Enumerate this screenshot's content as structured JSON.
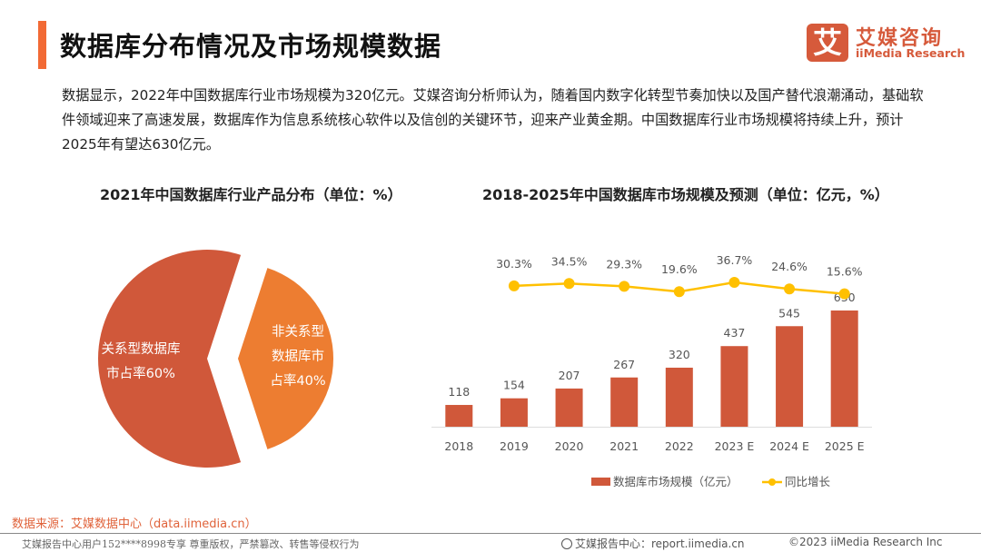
{
  "header": {
    "title": "数据库分布情况及市场规模数据",
    "logo_mark": "艾",
    "logo_cn": "艾媒咨询",
    "logo_en": "iiMedia Research"
  },
  "summary": "数据显示，2022年中国数据库行业市场规模为320亿元。艾媒咨询分析师认为，随着国内数字化转型节奏加快以及国产替代浪潮涌动，基础软件领域迎来了高速发展，数据库作为信息系统核心软件以及信创的关键环节，迎来产业黄金期。中国数据库行业市场规模将持续上升，预计2025年有望达630亿元。",
  "colors": {
    "accent": "#f26a35",
    "bar": "#d0583a",
    "line": "#ffc000",
    "pie_relational": "#d0583a",
    "pie_nonrelational": "#ed7d31"
  },
  "chart_data": [
    {
      "type": "pie",
      "title": "2021年中国数据库行业产品分布（单位：%）",
      "slices": [
        {
          "label": "关系型数据库市占率60%",
          "label_lines": [
            "关系型数据库",
            "市占率60%"
          ],
          "value": 60
        },
        {
          "label": "非关系型数据库市占率40%",
          "label_lines": [
            "非关系型",
            "数据库市",
            "占率40%"
          ],
          "value": 40
        }
      ]
    },
    {
      "type": "bar",
      "title": "2018-2025年中国数据库市场规模及预测（单位：亿元，%）",
      "categories": [
        "2018",
        "2019",
        "2020",
        "2021",
        "2022",
        "2023 E",
        "2024 E",
        "2025 E"
      ],
      "series": [
        {
          "name": "数据库市场规模（亿元）",
          "type": "bar",
          "values": [
            118,
            154,
            207,
            267,
            320,
            437,
            545,
            630
          ],
          "labels": [
            "118",
            "154",
            "207",
            "267",
            "320",
            "437",
            "545",
            "630"
          ]
        },
        {
          "name": "同比增长",
          "type": "line",
          "values": [
            30.3,
            34.5,
            29.3,
            19.6,
            36.7,
            24.6,
            15.6
          ],
          "x_start_index": 1,
          "labels": [
            "30.3%",
            "34.5%",
            "29.3%",
            "19.6%",
            "36.7%",
            "24.6%",
            "15.6%"
          ]
        }
      ],
      "legend": "bottom",
      "grid": false
    }
  ],
  "footer": {
    "source": "数据来源：艾媒数据中心（data.iimedia.cn）",
    "copyright_notice": "艾媒报告中心用户152****8998专享 尊重版权，严禁篡改、转售等侵权行为",
    "report_center": "艾媒报告中心：report.iimedia.cn",
    "copyright": "©2023  iiMedia Research  Inc"
  }
}
